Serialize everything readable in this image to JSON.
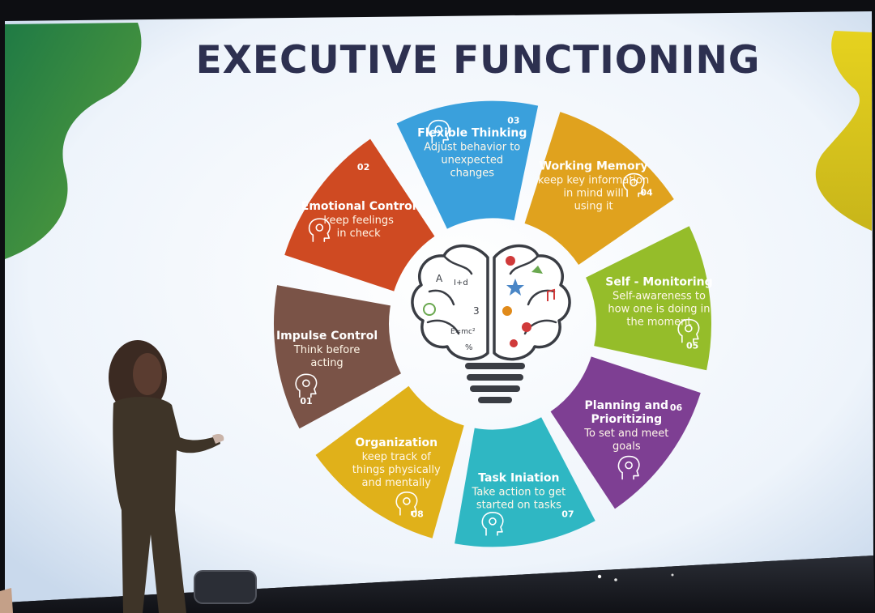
{
  "slide": {
    "title": "EXECUTIVE FUNCTIONING",
    "segments": [
      {
        "id": "impulse-control",
        "number": "01",
        "title": "Impulse Control",
        "desc": [
          "Think before",
          "acting"
        ],
        "color": "#7a5347",
        "icon": "gears-head-icon"
      },
      {
        "id": "emotional-control",
        "number": "02",
        "title": "Emotional Control",
        "desc": [
          "keep feelings",
          "in check"
        ],
        "color": "#cf4a22",
        "icon": "emotion-head-icon"
      },
      {
        "id": "flexible-thinking",
        "number": "03",
        "title": "Flexible Thinking",
        "desc": [
          "Adjust behavior to",
          "unexpected",
          "changes"
        ],
        "color": "#3aa0dc",
        "icon": "scribble-head-icon"
      },
      {
        "id": "working-memory",
        "number": "04",
        "title": "Working Memory",
        "desc": [
          "keep key information",
          "in mind will",
          "using it"
        ],
        "color": "#e0a21e",
        "icon": "brain-head-icon"
      },
      {
        "id": "self-monitoring",
        "number": "05",
        "title": "Self - Monitoring",
        "desc": [
          "Self-awareness to",
          "how one is doing in",
          "the moment"
        ],
        "color": "#95bd2a",
        "icon": "monitor-person-icon"
      },
      {
        "id": "planning-prioritizing",
        "number": "06",
        "title": "Planning and Prioritizing",
        "title_lines": [
          "Planning and",
          "Prioritizing"
        ],
        "desc": [
          "To set and meet",
          "goals"
        ],
        "color": "#7e3f93",
        "icon": "lightbulb-head-icon"
      },
      {
        "id": "task-initiation",
        "number": "07",
        "title": "Task Iniation",
        "desc": [
          "Take action to get",
          "started on tasks"
        ],
        "color": "#2fb7c3",
        "icon": "idea-bulb-icon"
      },
      {
        "id": "organization",
        "number": "08",
        "title": "Organization",
        "desc": [
          "keep track of",
          "things physically",
          "and mentally"
        ],
        "color": "#e0b11a",
        "icon": "brain-icon"
      }
    ],
    "center_icon": "brain-lightbulb-icon",
    "brain_doodles": [
      "A",
      "I+d",
      "3",
      "E=mc²",
      "%"
    ]
  },
  "colors": {
    "backdrop": "#0d0e12",
    "slide_bg": "#f2f6fb",
    "title_text": "#2d3050",
    "blob_green": "#2f8e4e",
    "blob_yellow": "#d8c81c"
  }
}
